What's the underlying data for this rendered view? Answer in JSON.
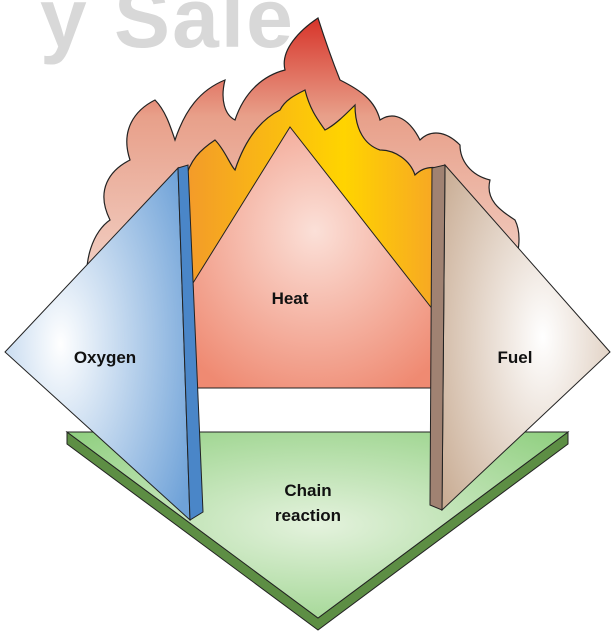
{
  "watermark": "y Sale",
  "nodes": [
    {
      "label": "Heat"
    },
    {
      "label": "Oxygen"
    },
    {
      "label": "Fuel"
    },
    {
      "label": "Chain reaction"
    }
  ]
}
